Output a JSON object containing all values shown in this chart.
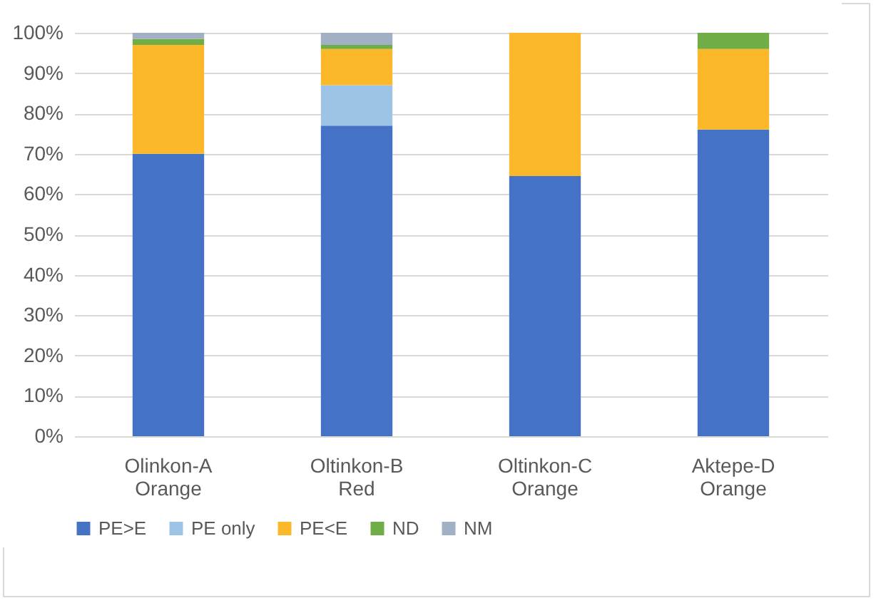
{
  "chart_data": {
    "type": "bar",
    "stacked": true,
    "categories": [
      "Olinkon-A Orange",
      "Oltinkon-B Red",
      "Oltinkon-C Orange",
      "Aktepe-D Orange"
    ],
    "series": [
      {
        "name": "PE>E",
        "color": "#4472c4",
        "values": [
          70,
          77,
          64.5,
          76
        ]
      },
      {
        "name": "PE only",
        "color": "#9dc3e6",
        "values": [
          0,
          10,
          0,
          0
        ]
      },
      {
        "name": "PE<E",
        "color": "#fbb829",
        "values": [
          27,
          9,
          35.5,
          20
        ]
      },
      {
        "name": "ND",
        "color": "#70ad47",
        "values": [
          1.5,
          1,
          0,
          4
        ]
      },
      {
        "name": "NM",
        "color": "#a2b0c6",
        "values": [
          1.5,
          3,
          0,
          0
        ]
      }
    ],
    "ylim": [
      0,
      100
    ],
    "yticks": [
      {
        "value": 0,
        "label": "0%"
      },
      {
        "value": 10,
        "label": "10%"
      },
      {
        "value": 20,
        "label": "20%"
      },
      {
        "value": 30,
        "label": "30%"
      },
      {
        "value": 40,
        "label": "40%"
      },
      {
        "value": 50,
        "label": "50%"
      },
      {
        "value": 60,
        "label": "60%"
      },
      {
        "value": 70,
        "label": "70%"
      },
      {
        "value": 80,
        "label": "80%"
      },
      {
        "value": 90,
        "label": "90%"
      },
      {
        "value": 100,
        "label": "100%"
      }
    ],
    "grid": "y",
    "legend": "bottom"
  }
}
